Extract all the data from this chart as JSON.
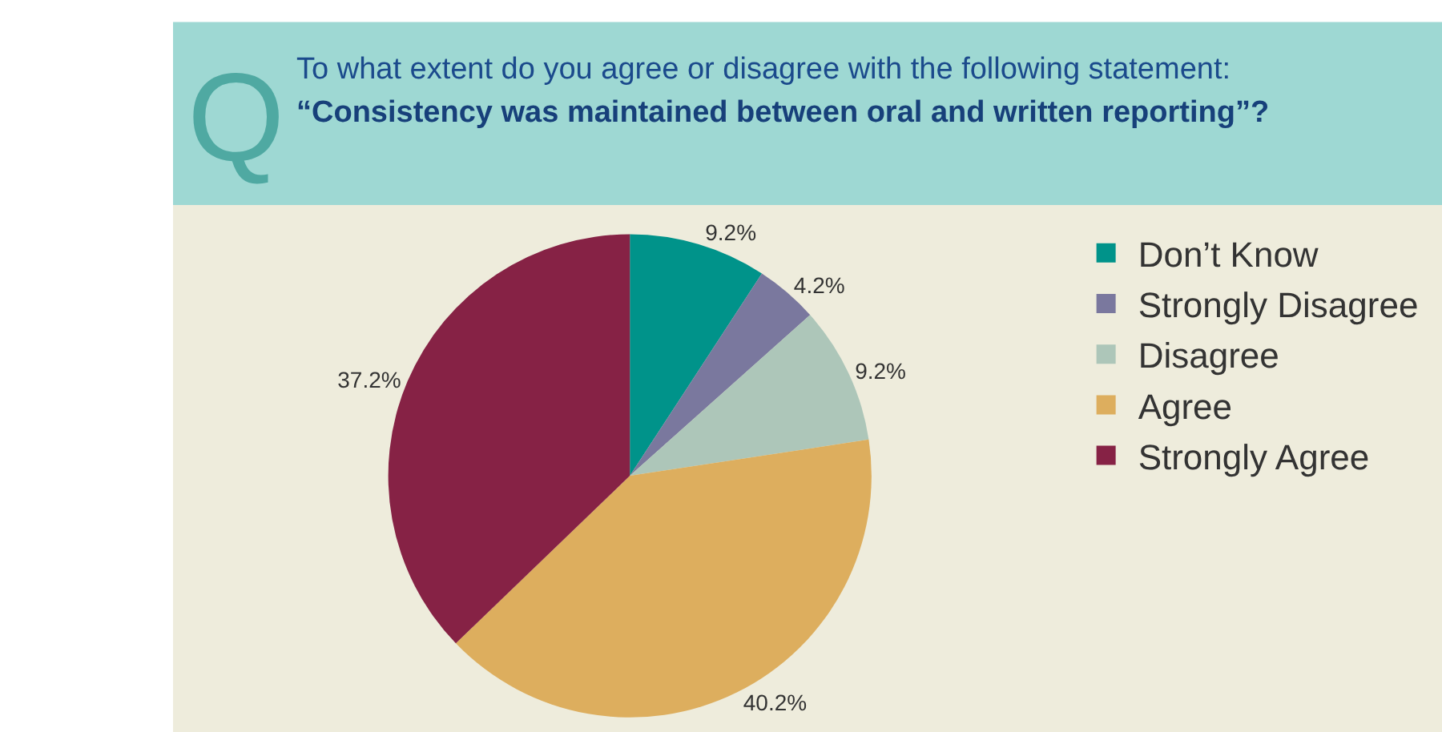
{
  "chart_data": {
    "type": "pie",
    "title": "To what extent do you agree or disagree with the following statement:",
    "subtitle": "“Consistency was maintained between oral and written reporting”?",
    "annotations": [
      "Q"
    ],
    "categories": [
      "Don’t Know",
      "Strongly Disagree",
      "Disagree",
      "Agree",
      "Strongly Agree"
    ],
    "values": [
      9.2,
      4.2,
      9.2,
      40.2,
      37.2
    ],
    "value_labels": [
      "9.2%",
      "4.2%",
      "9.2%",
      "40.2%",
      "37.2%"
    ],
    "colors": [
      "#00938a",
      "#7a789e",
      "#adc6b9",
      "#ddae5e",
      "#862245"
    ],
    "legend": "right"
  }
}
